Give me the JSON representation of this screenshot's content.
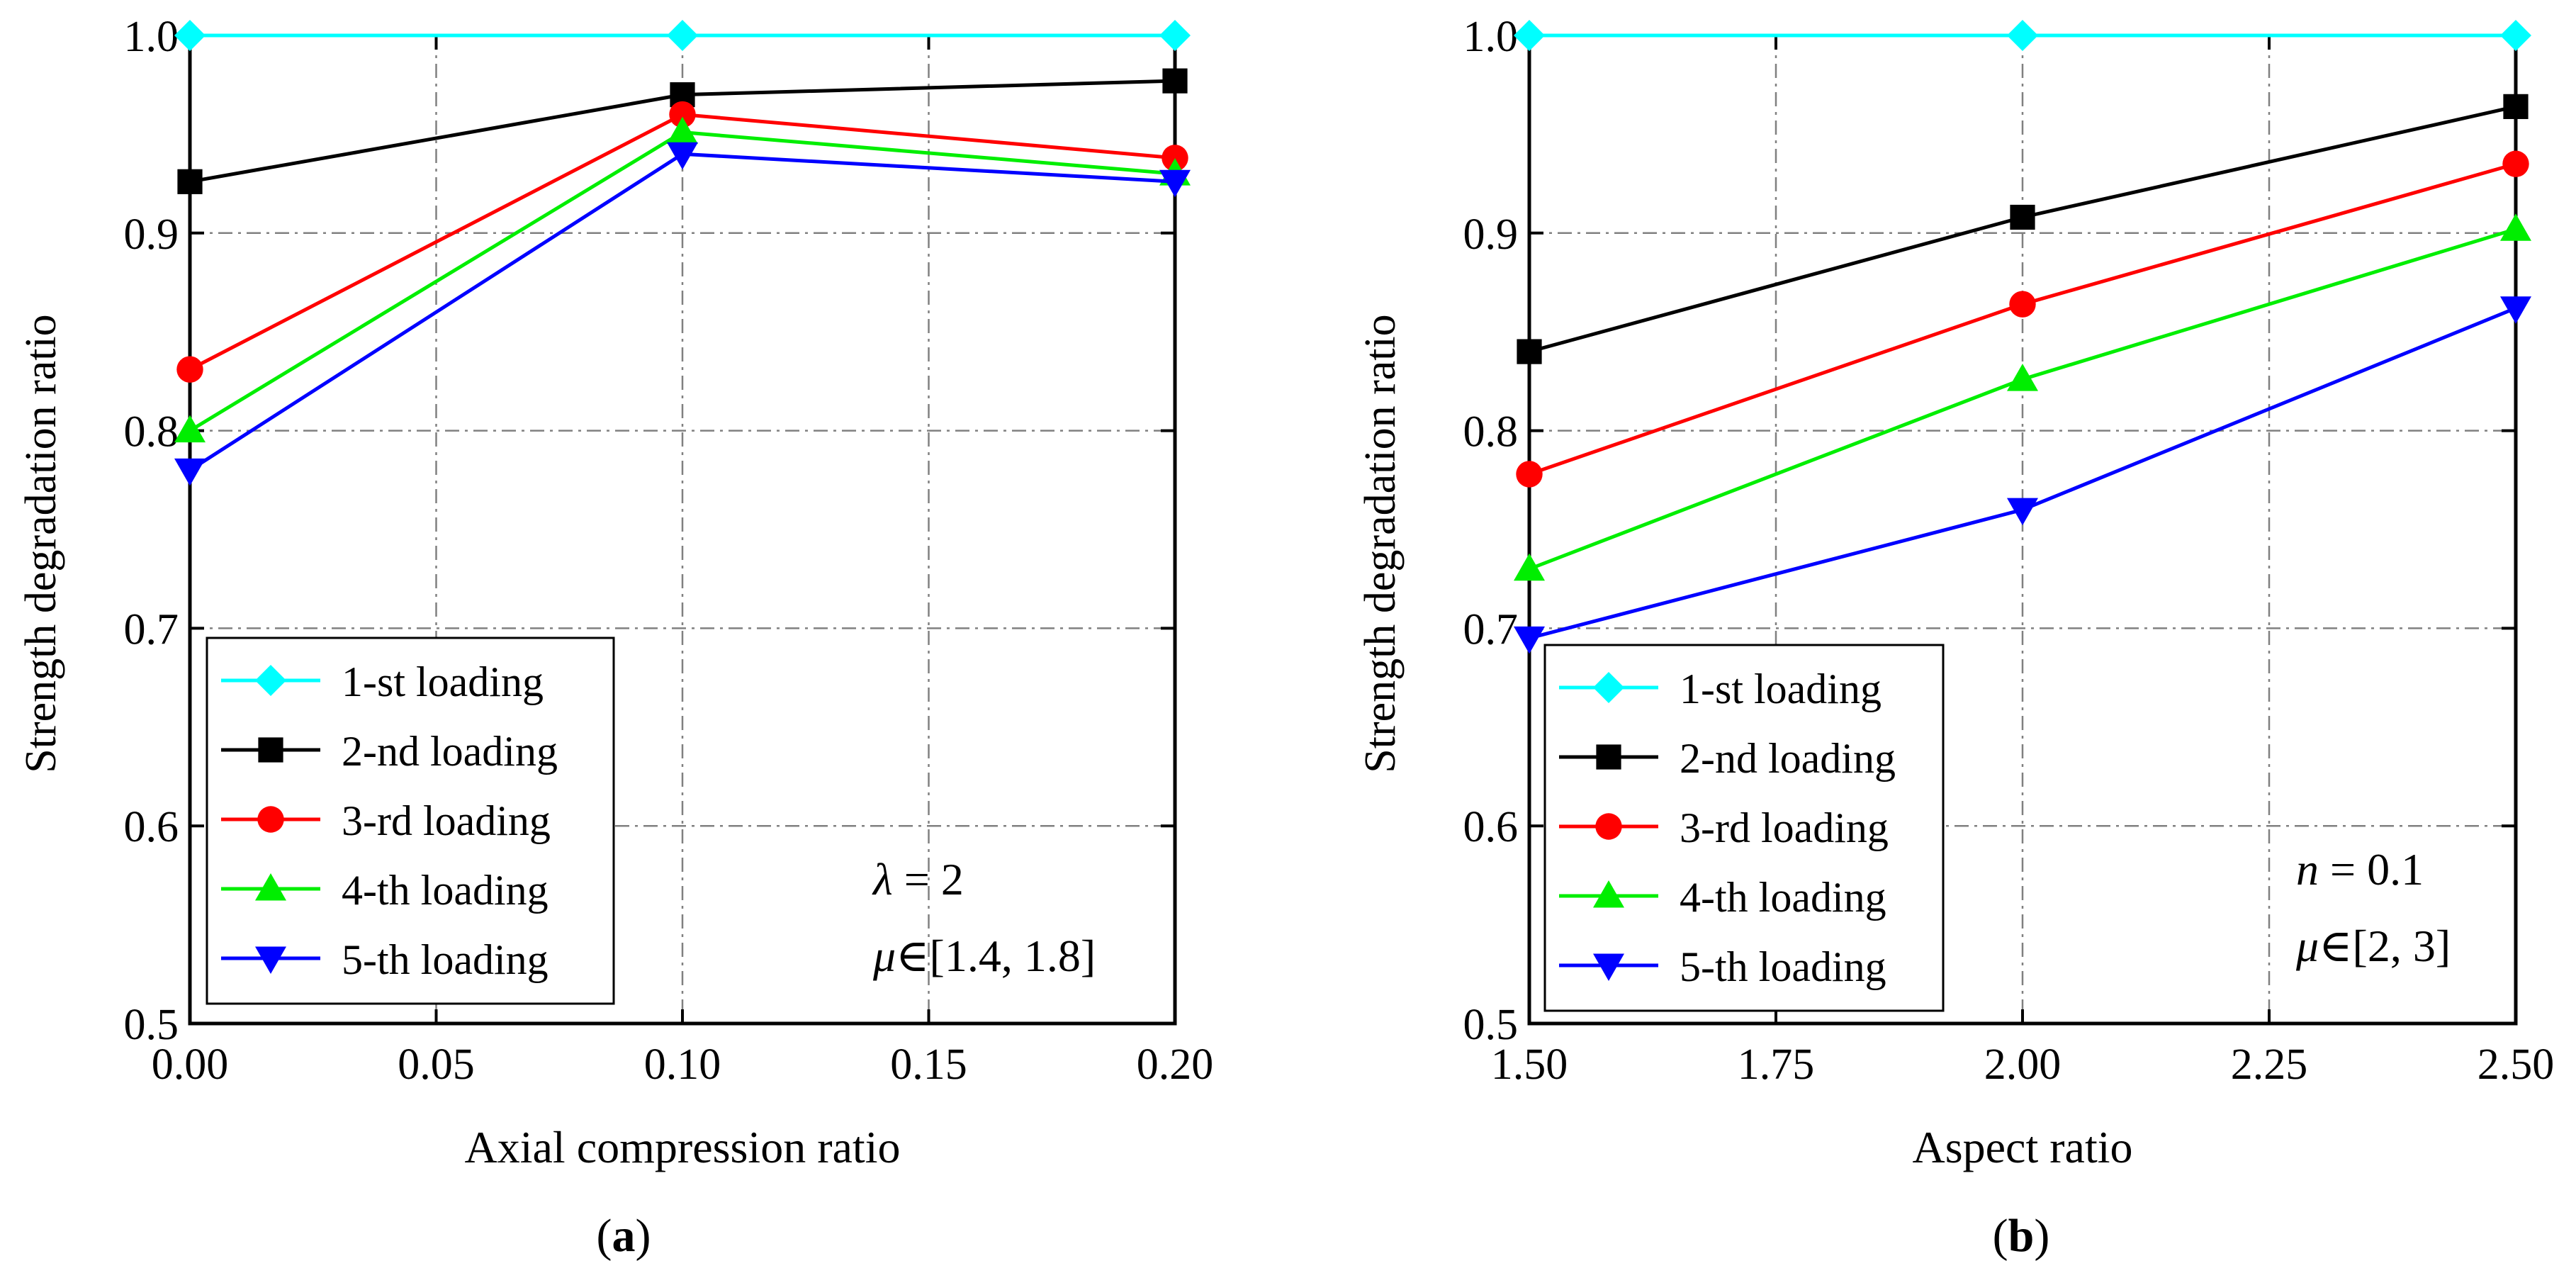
{
  "chart_data": [
    {
      "type": "line",
      "panel_label": "a",
      "xlabel": "Axial compression ratio",
      "ylabel": "Strength degradation ratio",
      "x": [
        0.0,
        0.1,
        0.2
      ],
      "xlim": [
        0.0,
        0.2
      ],
      "ylim": [
        0.5,
        1.0
      ],
      "xticks": [
        0.0,
        0.05,
        0.1,
        0.15,
        0.2
      ],
      "xtick_labels": [
        "0.00",
        "0.05",
        "0.10",
        "0.15",
        "0.20"
      ],
      "yticks": [
        0.5,
        0.6,
        0.7,
        0.8,
        0.9,
        1.0
      ],
      "ytick_labels": [
        "0.5",
        "0.6",
        "0.7",
        "0.8",
        "0.9",
        "1.0"
      ],
      "grid": true,
      "legend_position": "bottom-left",
      "annotations": [
        {
          "var": "λ",
          "rest": " = 2"
        },
        {
          "var": "μ",
          "rest": "∈[1.4, 1.8]"
        }
      ],
      "series": [
        {
          "name": "1-st loading",
          "color": "#00FFFF",
          "marker": "diamond",
          "values": [
            1.0,
            1.0,
            1.0
          ]
        },
        {
          "name": "2-nd loading",
          "color": "#000000",
          "marker": "square",
          "values": [
            0.926,
            0.97,
            0.977
          ]
        },
        {
          "name": "3-rd loading",
          "color": "#FF0000",
          "marker": "circle",
          "values": [
            0.831,
            0.96,
            0.938
          ]
        },
        {
          "name": "4-th loading",
          "color": "#00EE00",
          "marker": "triangle-up",
          "values": [
            0.8,
            0.951,
            0.93
          ]
        },
        {
          "name": "5-th loading",
          "color": "#0000FF",
          "marker": "triangle-down",
          "values": [
            0.78,
            0.94,
            0.926
          ]
        }
      ]
    },
    {
      "type": "line",
      "panel_label": "b",
      "xlabel": "Aspect ratio",
      "ylabel": "Strength degradation ratio",
      "x": [
        1.5,
        2.0,
        2.5
      ],
      "xlim": [
        1.5,
        2.5
      ],
      "ylim": [
        0.5,
        1.0
      ],
      "xticks": [
        1.5,
        1.75,
        2.0,
        2.25,
        2.5
      ],
      "xtick_labels": [
        "1.50",
        "1.75",
        "2.00",
        "2.25",
        "2.50"
      ],
      "yticks": [
        0.5,
        0.6,
        0.7,
        0.8,
        0.9,
        1.0
      ],
      "ytick_labels": [
        "0.5",
        "0.6",
        "0.7",
        "0.8",
        "0.9",
        "1.0"
      ],
      "grid": true,
      "legend_position": "bottom-left",
      "annotations": [
        {
          "var": "n",
          "rest": " = 0.1"
        },
        {
          "var": "μ",
          "rest": "∈[2, 3]"
        }
      ],
      "series": [
        {
          "name": "1-st loading",
          "color": "#00FFFF",
          "marker": "diamond",
          "values": [
            1.0,
            1.0,
            1.0
          ]
        },
        {
          "name": "2-nd loading",
          "color": "#000000",
          "marker": "square",
          "values": [
            0.84,
            0.908,
            0.964
          ]
        },
        {
          "name": "3-rd loading",
          "color": "#FF0000",
          "marker": "circle",
          "values": [
            0.778,
            0.864,
            0.935
          ]
        },
        {
          "name": "4-th loading",
          "color": "#00EE00",
          "marker": "triangle-up",
          "values": [
            0.73,
            0.826,
            0.902
          ]
        },
        {
          "name": "5-th loading",
          "color": "#0000FF",
          "marker": "triangle-down",
          "values": [
            0.695,
            0.76,
            0.862
          ]
        }
      ]
    }
  ]
}
